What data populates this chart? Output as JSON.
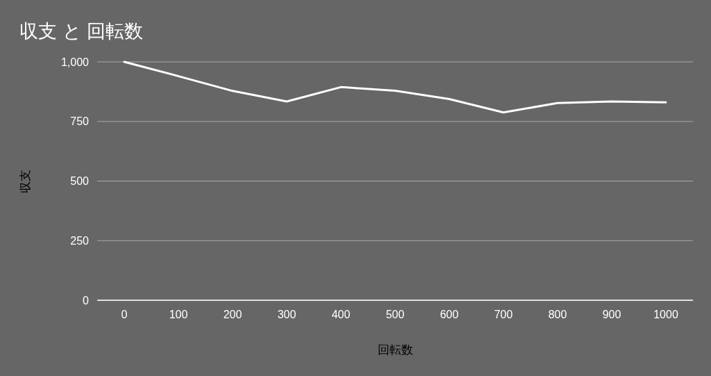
{
  "chart_data": {
    "type": "line",
    "title": "収支 と 回転数",
    "xlabel": "回転数",
    "ylabel": "収支",
    "x": [
      0,
      100,
      200,
      300,
      400,
      500,
      600,
      700,
      800,
      900,
      1000
    ],
    "series": [
      {
        "color": "#ffffff",
        "values": [
          1000,
          940,
          878,
          834,
          894,
          879,
          844,
          788,
          827,
          834,
          830
        ]
      }
    ],
    "xlim": [
      -50,
      1050
    ],
    "xticks": [
      0,
      100,
      200,
      300,
      400,
      500,
      600,
      700,
      800,
      900,
      1000
    ],
    "ylim": [
      0,
      1000
    ],
    "yticks": [
      0,
      250,
      500,
      750,
      {
        "value": 1000,
        "label": "1,000"
      }
    ],
    "grid": "y",
    "marker": "none",
    "line_style": "solid"
  }
}
